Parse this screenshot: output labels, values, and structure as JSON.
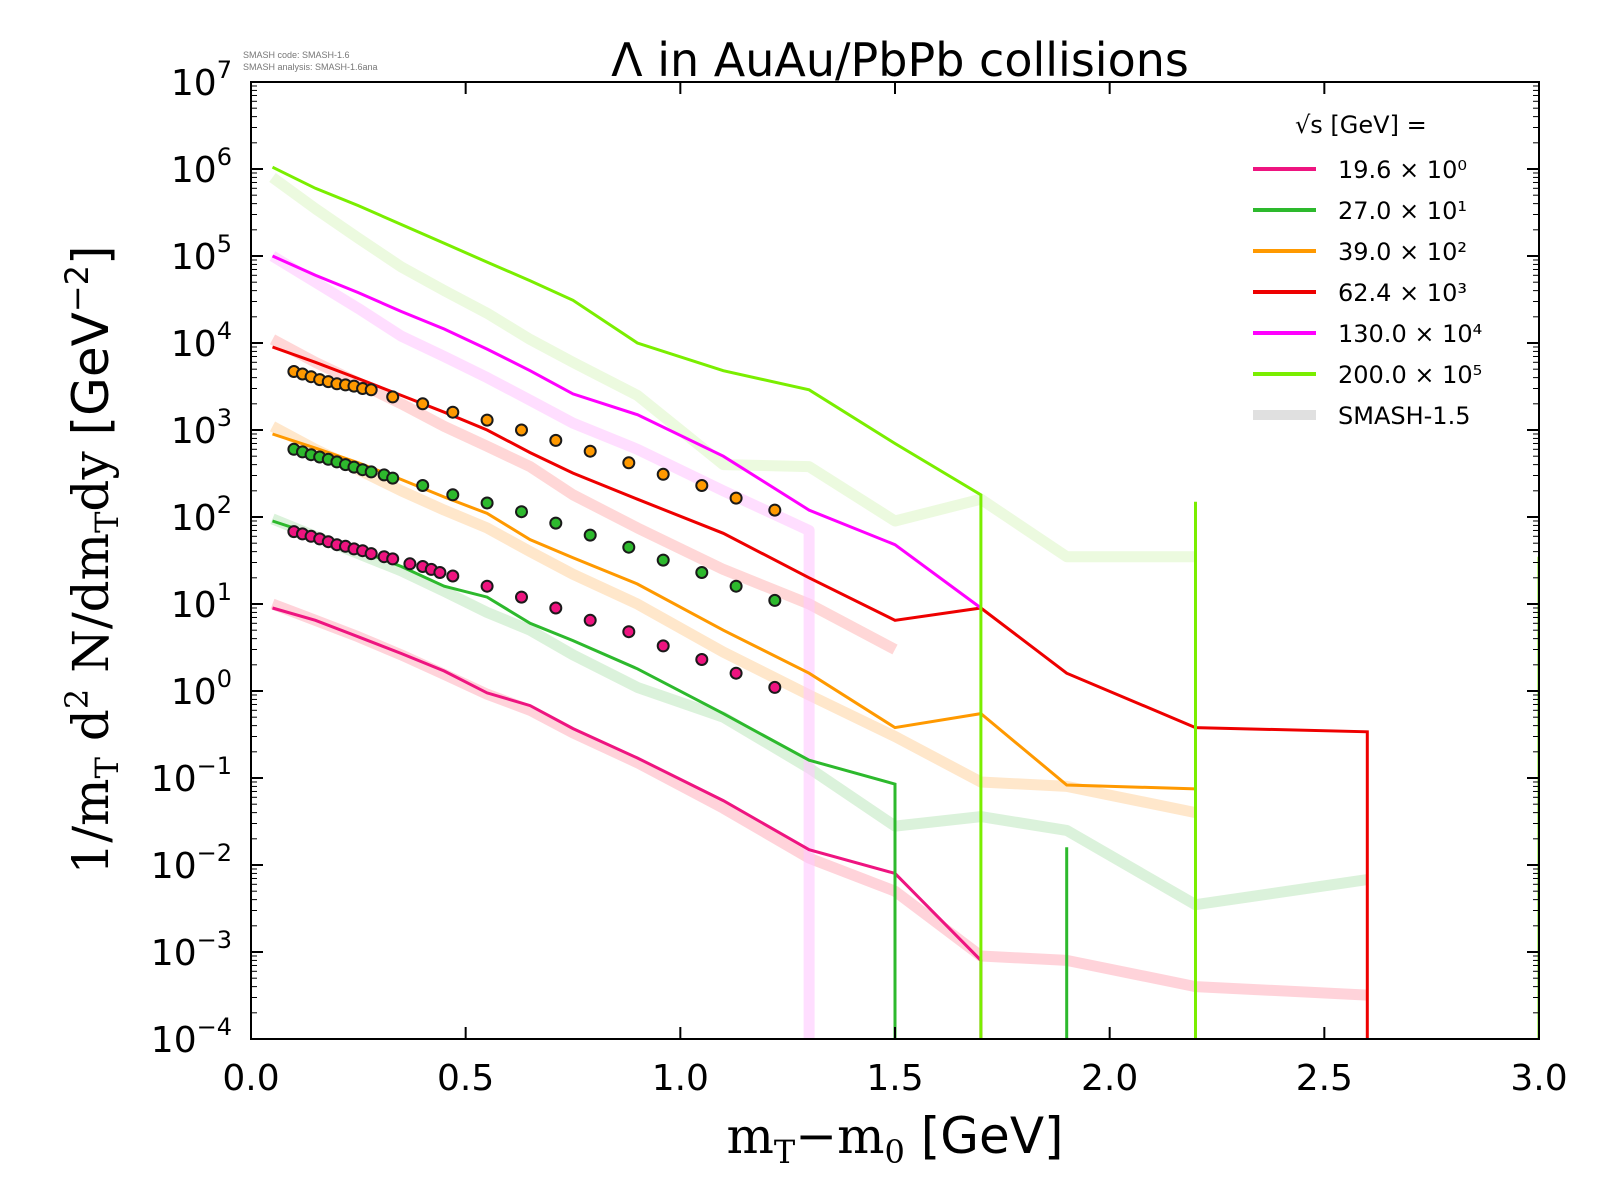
{
  "header": {
    "code_line": "SMASH code:      SMASH-1.6",
    "analysis_line": "SMASH analysis: SMASH-1.6ana"
  },
  "chart_data": {
    "type": "line",
    "title": "Λ in AuAu/PbPb collisions",
    "xlabel": "m_T−m_0 [GeV]",
    "ylabel": "1/m_T d^2 N/dm_T dy [GeV^−2]",
    "xlim": [
      0.0,
      3.0
    ],
    "ylim_log10": [
      -4,
      7
    ],
    "yscale": "log",
    "x_ticks": [
      "0.0",
      "0.5",
      "1.0",
      "1.5",
      "2.0",
      "2.5",
      "3.0"
    ],
    "y_ticks": [
      {
        "base": "10",
        "exp": "7"
      },
      {
        "base": "10",
        "exp": "6"
      },
      {
        "base": "10",
        "exp": "5"
      },
      {
        "base": "10",
        "exp": "4"
      },
      {
        "base": "10",
        "exp": "3"
      },
      {
        "base": "10",
        "exp": "2"
      },
      {
        "base": "10",
        "exp": "1"
      },
      {
        "base": "10",
        "exp": "0"
      },
      {
        "base": "10",
        "exp": "−1"
      },
      {
        "base": "10",
        "exp": "−2"
      },
      {
        "base": "10",
        "exp": "−3"
      },
      {
        "base": "10",
        "exp": "−4"
      }
    ],
    "legend_title": "√s  [GeV] =",
    "legend_position": "top-right",
    "series": [
      {
        "name": "19.6 × 10⁰",
        "color": "#ee1480",
        "x": [
          0.05,
          0.15,
          0.25,
          0.35,
          0.45,
          0.55,
          0.65,
          0.75,
          0.9,
          1.1,
          1.3,
          1.5,
          1.7,
          1.7
        ],
        "y": [
          9,
          6.5,
          4.2,
          2.7,
          1.7,
          0.95,
          0.68,
          0.37,
          0.17,
          0.055,
          0.015,
          0.008,
          0.0008,
          5e-05
        ]
      },
      {
        "name": "27.0 × 10¹",
        "color": "#2db92d",
        "x": [
          0.05,
          0.15,
          0.25,
          0.35,
          0.45,
          0.55,
          0.65,
          0.75,
          0.9,
          1.1,
          1.3,
          1.5,
          1.5,
          1.9,
          1.9,
          1.9,
          2.2,
          2.2,
          2.2
        ],
        "y": [
          90,
          62,
          42,
          27,
          16,
          12,
          6,
          3.8,
          1.8,
          0.55,
          0.16,
          0.085,
          5e-05,
          5e-05,
          0.016,
          5e-05,
          5e-05,
          0.0015,
          5e-05
        ]
      },
      {
        "name": "39.0 × 10²",
        "color": "#ff9900",
        "x": [
          0.05,
          0.15,
          0.25,
          0.35,
          0.45,
          0.55,
          0.65,
          0.75,
          0.9,
          1.1,
          1.3,
          1.5,
          1.7,
          1.9,
          2.2
        ],
        "y": [
          900,
          620,
          420,
          270,
          170,
          110,
          55,
          34,
          17,
          5,
          1.6,
          0.38,
          0.55,
          0.083,
          0.075
        ]
      },
      {
        "name": "62.4 × 10³",
        "color": "#ee0000",
        "x": [
          0.05,
          0.15,
          0.25,
          0.35,
          0.45,
          0.55,
          0.65,
          0.75,
          0.9,
          1.1,
          1.3,
          1.5,
          1.7,
          1.9,
          2.2,
          2.6,
          2.6
        ],
        "y": [
          9000,
          6000,
          3900,
          2500,
          1600,
          1000,
          550,
          320,
          160,
          65,
          20,
          6.5,
          9,
          1.6,
          0.38,
          0.34,
          5e-05
        ]
      },
      {
        "name": "130.0 × 10⁴",
        "color": "#ff00ff",
        "x": [
          0.05,
          0.15,
          0.25,
          0.35,
          0.45,
          0.55,
          0.65,
          0.75,
          0.9,
          1.1,
          1.3,
          1.5,
          1.7
        ],
        "y": [
          100000,
          60000,
          38000,
          23000,
          14500,
          8500,
          4800,
          2600,
          1500,
          500,
          120,
          48,
          9
        ]
      },
      {
        "name": "200.0 × 10⁵",
        "color": "#7aee00",
        "x": [
          0.05,
          0.15,
          0.25,
          0.35,
          0.45,
          0.55,
          0.65,
          0.75,
          0.9,
          1.1,
          1.3,
          1.5,
          1.7,
          1.7,
          2.2,
          2.2,
          2.2,
          3.0,
          3.0
        ],
        "y": [
          1050000,
          600000,
          380000,
          230000,
          140000,
          85000,
          52000,
          31000,
          10000,
          4800,
          2900,
          700,
          180,
          5e-05,
          5e-05,
          150,
          5e-05,
          5e-05,
          35
        ]
      }
    ],
    "reference_series": [
      {
        "name": "SMASH-1.5",
        "color": "#ffb6c1",
        "x": [
          0.05,
          0.15,
          0.25,
          0.35,
          0.45,
          0.55,
          0.65,
          0.75,
          0.9,
          1.1,
          1.3,
          1.5,
          1.7,
          1.9,
          2.2,
          2.6
        ],
        "y": [
          10,
          6.5,
          4.2,
          2.6,
          1.55,
          0.92,
          0.6,
          0.33,
          0.15,
          0.045,
          0.012,
          0.005,
          0.0009,
          0.0008,
          0.0004,
          0.00032
        ]
      },
      {
        "name": "SMASH-1.5",
        "color": "#c3e9c3",
        "x": [
          0.05,
          0.15,
          0.25,
          0.35,
          0.45,
          0.55,
          0.65,
          0.75,
          0.9,
          1.1,
          1.3,
          1.5,
          1.7,
          1.9,
          2.2,
          2.6
        ],
        "y": [
          95,
          60,
          38,
          24,
          14,
          8,
          5,
          2.6,
          1.1,
          0.5,
          0.13,
          0.028,
          0.036,
          0.025,
          0.0035,
          0.0068
        ]
      },
      {
        "name": "SMASH-1.5",
        "color": "#ffd7a8",
        "x": [
          0.05,
          0.15,
          0.25,
          0.35,
          0.45,
          0.55,
          0.65,
          0.75,
          0.9,
          1.1,
          1.3,
          1.5,
          1.7,
          1.9,
          2.2
        ],
        "y": [
          1100,
          600,
          350,
          200,
          120,
          75,
          40,
          22,
          10,
          2.8,
          0.9,
          0.3,
          0.09,
          0.08,
          0.04
        ]
      },
      {
        "name": "SMASH-1.5",
        "color": "#ffbcbc",
        "x": [
          0.05,
          0.15,
          0.25,
          0.35,
          0.45,
          0.55,
          0.65,
          0.75,
          0.9,
          1.1,
          1.3,
          1.5
        ],
        "y": [
          11000,
          6000,
          3500,
          2000,
          1100,
          650,
          380,
          180,
          75,
          25,
          10,
          3
        ]
      },
      {
        "name": "SMASH-1.5",
        "color": "#ffc8ff",
        "x": [
          0.05,
          0.15,
          0.25,
          0.35,
          0.45,
          0.55,
          0.65,
          0.75,
          0.9,
          1.1,
          1.3,
          1.3
        ],
        "y": [
          100000,
          50000,
          25000,
          12000,
          7000,
          4000,
          2200,
          1200,
          600,
          200,
          70,
          5e-05
        ]
      },
      {
        "name": "SMASH-1.5",
        "color": "#dff7c9",
        "x": [
          0.05,
          0.15,
          0.25,
          0.35,
          0.45,
          0.55,
          0.65,
          0.75,
          0.9,
          1.1,
          1.3,
          1.5,
          1.7,
          1.9,
          2.2
        ],
        "y": [
          800000,
          350000,
          160000,
          75000,
          40000,
          22000,
          11000,
          6000,
          2500,
          400,
          380,
          90,
          160,
          35,
          35
        ]
      }
    ],
    "data_points": [
      {
        "color": "#ee1480",
        "x": [
          0.1,
          0.12,
          0.14,
          0.16,
          0.18,
          0.2,
          0.22,
          0.24,
          0.26,
          0.28,
          0.31,
          0.33,
          0.37,
          0.4,
          0.42,
          0.44,
          0.47,
          0.55,
          0.63,
          0.71,
          0.79,
          0.88,
          0.96,
          1.05,
          1.13,
          1.22
        ],
        "y": [
          68,
          64,
          60,
          56,
          52,
          48,
          46,
          43,
          41,
          38,
          35,
          33,
          29,
          27,
          25,
          23,
          21,
          16,
          12,
          9,
          6.5,
          4.8,
          3.3,
          2.3,
          1.6,
          1.1
        ]
      },
      {
        "color": "#2db92d",
        "x": [
          0.1,
          0.12,
          0.14,
          0.16,
          0.18,
          0.2,
          0.22,
          0.24,
          0.26,
          0.28,
          0.31,
          0.33,
          0.4,
          0.47,
          0.55,
          0.63,
          0.71,
          0.79,
          0.88,
          0.96,
          1.05,
          1.13,
          1.22
        ],
        "y": [
          600,
          560,
          520,
          490,
          460,
          430,
          400,
          375,
          350,
          330,
          305,
          280,
          230,
          180,
          145,
          115,
          85,
          62,
          45,
          32,
          23,
          16,
          11
        ]
      },
      {
        "color": "#ff9900",
        "x": [
          0.1,
          0.12,
          0.14,
          0.16,
          0.18,
          0.2,
          0.22,
          0.24,
          0.26,
          0.28,
          0.33,
          0.4,
          0.47,
          0.55,
          0.63,
          0.71,
          0.79,
          0.88,
          0.96,
          1.05,
          1.13,
          1.22
        ],
        "y": [
          4700,
          4400,
          4100,
          3800,
          3600,
          3400,
          3300,
          3200,
          3000,
          2900,
          2400,
          2000,
          1600,
          1300,
          1000,
          760,
          570,
          420,
          310,
          230,
          165,
          120
        ]
      }
    ]
  }
}
